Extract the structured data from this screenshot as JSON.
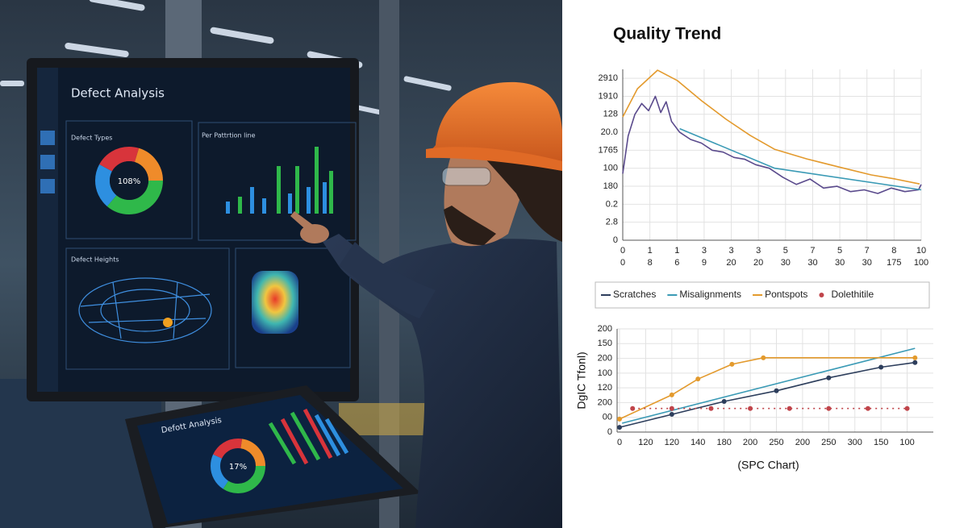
{
  "scene": {
    "monitor_title": "Defect Analysis",
    "panel_1": "Defect Types",
    "panel_2": "Per Pattrtion line",
    "panel_3": "Defect Heights",
    "donut_label": "108%",
    "tablet_title": "Defott Analysis",
    "tablet_donut_label": "17%"
  },
  "chart_data": [
    {
      "type": "line",
      "title": "Quality Trend",
      "xlim": [
        0,
        11
      ],
      "ylim": [
        0,
        95
      ],
      "grid": true,
      "yticks": [
        {
          "value": 90,
          "label": "2910"
        },
        {
          "value": 80,
          "label": "1910"
        },
        {
          "value": 70,
          "label": "128"
        },
        {
          "value": 60,
          "label": "20.0"
        },
        {
          "value": 50,
          "label": "1765"
        },
        {
          "value": 40,
          "label": "100"
        },
        {
          "value": 30,
          "label": "180"
        },
        {
          "value": 20,
          "label": "0.2"
        },
        {
          "value": 10,
          "label": "2.8"
        },
        0
      ],
      "xticks": [
        0,
        1,
        {
          "value": 2,
          "label": "1"
        },
        3,
        {
          "value": 4,
          "label": "3"
        },
        {
          "value": 5,
          "label": "3"
        },
        {
          "value": 6,
          "label": "5"
        },
        7,
        {
          "value": 8,
          "label": "5"
        },
        {
          "value": 9,
          "label": "7"
        },
        {
          "value": 10,
          "label": "8"
        },
        {
          "value": 11,
          "label": "10"
        }
      ],
      "xticks_secondary": [
        0,
        {
          "value": 1,
          "label": "8"
        },
        {
          "value": 2,
          "label": "6"
        },
        {
          "value": 3,
          "label": "9"
        },
        {
          "value": 4,
          "label": "20"
        },
        {
          "value": 5,
          "label": "20"
        },
        {
          "value": 6,
          "label": "30"
        },
        {
          "value": 7,
          "label": "30"
        },
        {
          "value": 8,
          "label": "30"
        },
        {
          "value": 9,
          "label": "30"
        },
        {
          "value": 10,
          "label": "175"
        },
        {
          "value": 11,
          "label": "100"
        }
      ],
      "series": [
        {
          "color": "#e39a2d",
          "x": [
            0,
            0.54,
            1.28,
            2.02,
            2.91,
            3.81,
            4.7,
            5.59,
            6.78,
            7.97,
            9.16,
            10.05,
            10.94
          ],
          "values": [
            68.5,
            84.2,
            94.5,
            88.7,
            77.5,
            67.2,
            58.2,
            50.6,
            45.2,
            40.7,
            36.3,
            34,
            31.3
          ]
        },
        {
          "color": "#5a4a8c",
          "x": [
            0,
            0.2,
            0.45,
            0.7,
            0.95,
            1.2,
            1.4,
            1.6,
            1.8,
            2.1,
            2.5,
            2.9,
            3.3,
            3.7,
            4.1,
            4.5,
            4.9,
            5.4,
            5.9,
            6.4,
            6.9,
            7.4,
            7.9,
            8.4,
            8.9,
            9.4,
            9.9,
            10.4,
            10.9,
            11
          ],
          "values": [
            37,
            58,
            70,
            76,
            72,
            80,
            71,
            77,
            66,
            60,
            56,
            54,
            50,
            49,
            46,
            45,
            42,
            40,
            35,
            31,
            34,
            29,
            30,
            27,
            28,
            26,
            29,
            27,
            28,
            31
          ]
        },
        {
          "color": "#3a9ab5",
          "x": [
            2.1,
            5.6,
            11
          ],
          "values": [
            62,
            40,
            28
          ]
        }
      ]
    },
    {
      "type": "line",
      "x_label": "(SPC Chart)",
      "y_label": "DgIC Tfonl)",
      "xlim": [
        0,
        12
      ],
      "ylim": [
        0,
        175
      ],
      "grid": true,
      "yticks": [
        {
          "value": 175,
          "label": "200"
        },
        150,
        {
          "value": 125,
          "label": "200"
        },
        100,
        {
          "value": 75,
          "label": "120"
        },
        {
          "value": 50,
          "label": "200"
        },
        {
          "value": 25,
          "label": "00"
        },
        0
      ],
      "xticks": [
        0,
        {
          "value": 1,
          "label": "120"
        },
        {
          "value": 2,
          "label": "120"
        },
        {
          "value": 3,
          "label": "140"
        },
        {
          "value": 4,
          "label": "180"
        },
        {
          "value": 5,
          "label": "200"
        },
        {
          "value": 6,
          "label": "250"
        },
        {
          "value": 7,
          "label": "200"
        },
        {
          "value": 8,
          "label": "250"
        },
        {
          "value": 9,
          "label": "300"
        },
        {
          "value": 10,
          "label": "150"
        },
        {
          "value": 11,
          "label": "100"
        }
      ],
      "series": [
        {
          "name": "Scratches",
          "color": "#2d3e5c",
          "markers": true,
          "x": [
            0,
            2,
            4,
            6,
            8,
            10,
            11.3
          ],
          "values": [
            8,
            30,
            52,
            70,
            92,
            110,
            118
          ]
        },
        {
          "name": "Misalignments",
          "color": "#3a9ab5",
          "markers": false,
          "x": [
            0.1,
            11.3
          ],
          "values": [
            15,
            142
          ]
        },
        {
          "name": "Pontspots",
          "color": "#e39a2d",
          "markers": true,
          "x": [
            0,
            2,
            3,
            4.3,
            5.5,
            11.3
          ],
          "values": [
            22,
            63,
            90,
            115,
            126,
            126
          ]
        },
        {
          "name": "Dolethitile",
          "color": "#c0444a",
          "markers": true,
          "line_style": "dotted",
          "x": [
            0.5,
            2,
            3.5,
            5,
            6.5,
            8,
            9.5,
            11
          ],
          "values": [
            40,
            40,
            40,
            40,
            40,
            40,
            40,
            40
          ]
        }
      ]
    }
  ]
}
